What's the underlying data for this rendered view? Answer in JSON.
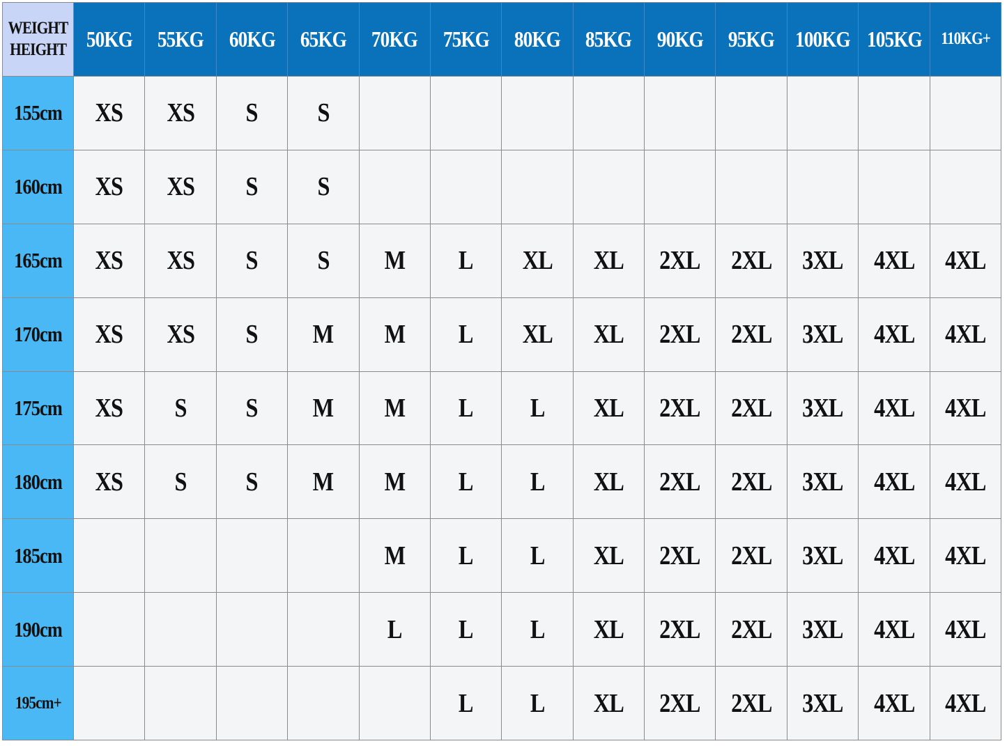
{
  "corner": {
    "top": "WEIGHT",
    "bottom": "HEIGHT"
  },
  "table": {
    "columns": [
      "50KG",
      "55KG",
      "60KG",
      "65KG",
      "70KG",
      "75KG",
      "80KG",
      "85KG",
      "90KG",
      "95KG",
      "100KG",
      "105KG",
      "110KG+"
    ],
    "row_labels": [
      "155cm",
      "160cm",
      "165cm",
      "170cm",
      "175cm",
      "180cm",
      "185cm",
      "190cm",
      "195cm+"
    ],
    "rows": [
      [
        "XS",
        "XS",
        "S",
        "S",
        null,
        null,
        null,
        null,
        null,
        null,
        null,
        null,
        null
      ],
      [
        "XS",
        "XS",
        "S",
        "S",
        null,
        null,
        null,
        null,
        null,
        null,
        null,
        null,
        null
      ],
      [
        "XS",
        "XS",
        "S",
        "S",
        "M",
        "L",
        "XL",
        "XL",
        "2XL",
        "2XL",
        "3XL",
        "4XL",
        "4XL"
      ],
      [
        "XS",
        "XS",
        "S",
        "M",
        "M",
        "L",
        "XL",
        "XL",
        "2XL",
        "2XL",
        "3XL",
        "4XL",
        "4XL"
      ],
      [
        "XS",
        "S",
        "S",
        "M",
        "M",
        "L",
        "L",
        "XL",
        "2XL",
        "2XL",
        "3XL",
        "4XL",
        "4XL"
      ],
      [
        "XS",
        "S",
        "S",
        "M",
        "M",
        "L",
        "L",
        "XL",
        "2XL",
        "2XL",
        "3XL",
        "4XL",
        "4XL"
      ],
      [
        null,
        null,
        null,
        null,
        "M",
        "L",
        "L",
        "XL",
        "2XL",
        "2XL",
        "3XL",
        "4XL",
        "4XL"
      ],
      [
        null,
        null,
        null,
        null,
        "L",
        "L",
        "L",
        "XL",
        "2XL",
        "2XL",
        "3XL",
        "4XL",
        "4XL"
      ],
      [
        null,
        null,
        null,
        null,
        null,
        "L",
        "L",
        "XL",
        "2XL",
        "2XL",
        "3XL",
        "4XL",
        "4XL"
      ]
    ]
  }
}
